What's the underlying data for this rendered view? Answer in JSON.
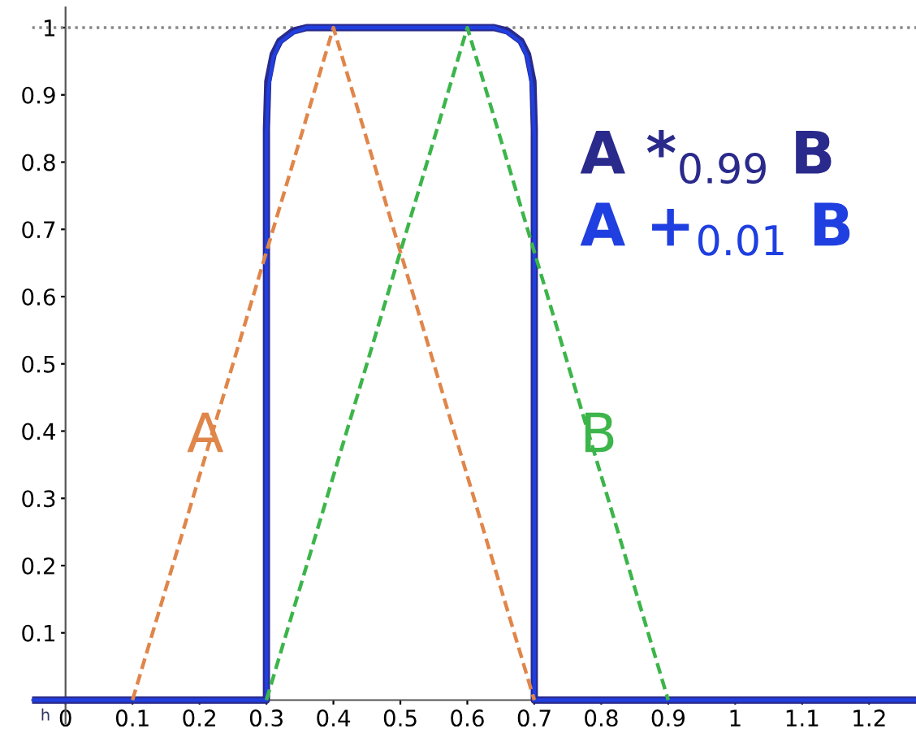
{
  "chart_data": {
    "type": "line",
    "series": [
      {
        "name": "A",
        "color": "#e0864a",
        "line_style": "dashed",
        "x": [
          0.1,
          0.4,
          0.7
        ],
        "values": [
          0,
          1,
          0
        ]
      },
      {
        "name": "B",
        "color": "#3cb54a",
        "line_style": "dashed",
        "x": [
          0.3,
          0.6,
          0.9
        ],
        "values": [
          0,
          1,
          0
        ]
      },
      {
        "name": "A *$_{0.99}$ B",
        "color": "#2a2a8c",
        "line_style": "solid",
        "x": [
          -0.05,
          0.3,
          0.3,
          0.302,
          0.31,
          0.32,
          0.34,
          0.36,
          0.64,
          0.66,
          0.68,
          0.69,
          0.698,
          0.7,
          0.7,
          1.27
        ],
        "values": [
          0,
          0,
          0.85,
          0.92,
          0.96,
          0.98,
          0.995,
          1.0,
          1.0,
          0.995,
          0.98,
          0.96,
          0.92,
          0.85,
          0,
          0
        ]
      },
      {
        "name": "A +$_{0.01}$ B",
        "color": "#1f3fe0",
        "line_style": "solid",
        "x": [
          -0.05,
          0.3,
          0.3,
          0.303,
          0.31,
          0.32,
          0.34,
          0.36,
          0.64,
          0.66,
          0.68,
          0.69,
          0.697,
          0.7,
          0.7,
          1.27
        ],
        "values": [
          0,
          0,
          0.84,
          0.91,
          0.955,
          0.978,
          0.993,
          1.0,
          1.0,
          0.993,
          0.978,
          0.955,
          0.91,
          0.84,
          0,
          0
        ]
      }
    ],
    "xlim": [
      -0.05,
      1.27
    ],
    "ylim": [
      -0.035,
      1.03
    ],
    "xticks": [
      0,
      0.1,
      0.2,
      0.3,
      0.4,
      0.5,
      0.6,
      0.7,
      0.8,
      0.9,
      1,
      1.1,
      1.2
    ],
    "yticks": [
      {
        "value": 0,
        "label": null
      },
      0.1,
      0.2,
      0.3,
      0.4,
      0.5,
      0.6,
      0.7,
      0.8,
      0.9,
      1
    ],
    "ref_lines": [
      {
        "axis": "y",
        "value": 1,
        "color": "#888888",
        "line_style": "dotted"
      }
    ],
    "annotations": [
      {
        "text": "h",
        "x": -0.03,
        "y": 0
      }
    ],
    "grid": false,
    "legend": false,
    "marker": "none"
  }
}
